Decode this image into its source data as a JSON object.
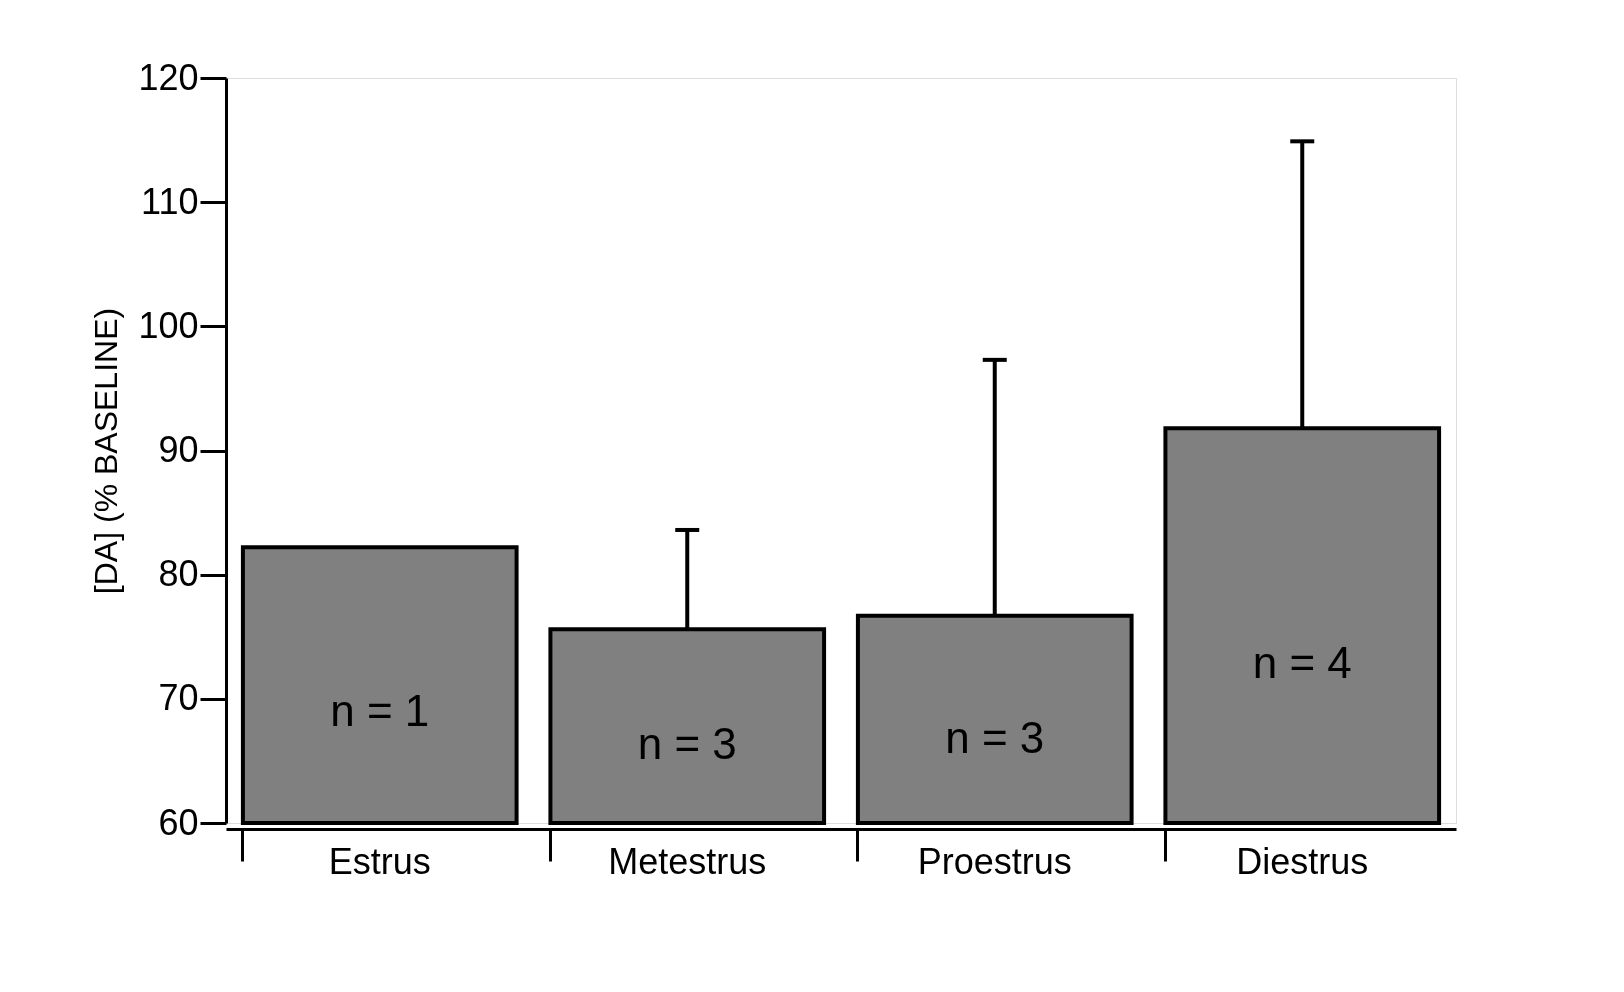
{
  "chart_data": {
    "type": "bar",
    "ylabel": "[DA] (% BASELINE)",
    "categories": [
      "Estrus",
      "Metestrus",
      "Proestrus",
      "Diestrus"
    ],
    "values": [
      82.2,
      75.6,
      76.7,
      91.8
    ],
    "errors": [
      null,
      [
        75.6,
        83.6
      ],
      [
        76.7,
        97.3
      ],
      [
        91.8,
        114.9
      ]
    ],
    "color": "#808080",
    "ylim": [
      60,
      120
    ],
    "yticks": [
      60,
      70,
      80,
      90,
      100,
      110,
      120
    ],
    "grid": false,
    "annotations": [
      "n = 1",
      "n = 3",
      "n = 3",
      "n = 4"
    ]
  }
}
